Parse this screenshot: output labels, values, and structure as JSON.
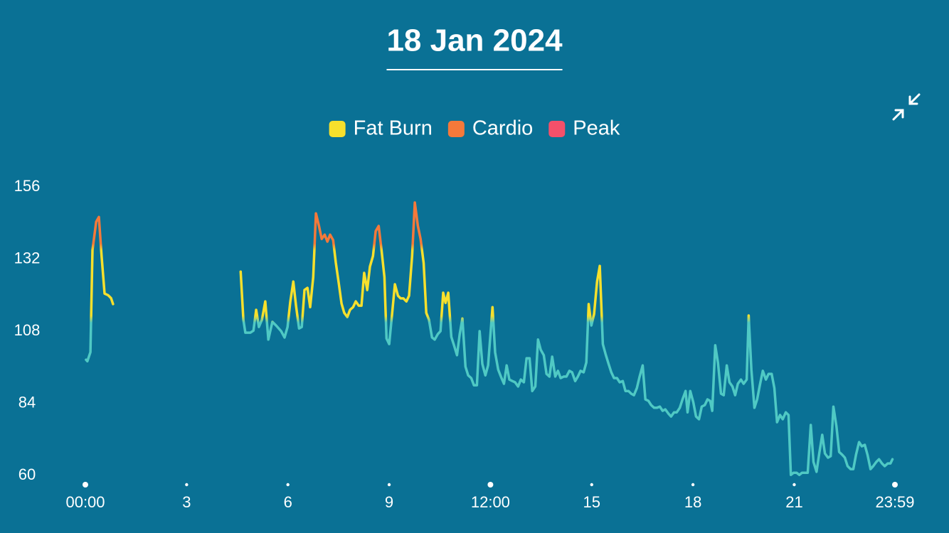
{
  "chart_data": {
    "type": "line",
    "title": "18 Jan 2024",
    "x": [
      0.02,
      0.06,
      0.15,
      0.21,
      0.23,
      0.32,
      0.4,
      0.48,
      0.57,
      0.67,
      0.76,
      0.82,
      null,
      4.6,
      4.68,
      4.74,
      4.89,
      4.98,
      5.06,
      5.14,
      5.23,
      5.33,
      5.42,
      5.54,
      5.65,
      5.8,
      5.9,
      5.99,
      6.07,
      6.16,
      6.24,
      6.33,
      6.41,
      6.49,
      6.58,
      6.66,
      6.75,
      6.83,
      6.92,
      7.0,
      7.09,
      7.17,
      7.25,
      7.34,
      7.42,
      7.51,
      7.59,
      7.67,
      7.76,
      7.84,
      7.93,
      8.01,
      8.1,
      8.18,
      8.26,
      8.35,
      8.43,
      8.52,
      8.6,
      8.69,
      8.77,
      8.86,
      8.92,
      9.0,
      9.09,
      9.17,
      9.26,
      9.34,
      9.42,
      9.51,
      9.59,
      9.68,
      9.76,
      9.85,
      9.93,
      10.02,
      10.1,
      10.18,
      10.27,
      10.35,
      10.44,
      10.52,
      10.6,
      10.67,
      10.75,
      10.84,
      10.92,
      11.01,
      11.09,
      11.17,
      11.26,
      11.34,
      11.43,
      11.51,
      11.6,
      11.68,
      11.76,
      11.85,
      11.93,
      12.06,
      12.14,
      12.23,
      12.31,
      12.4,
      12.48,
      12.56,
      12.65,
      12.73,
      12.82,
      12.9,
      12.99,
      13.07,
      13.16,
      13.24,
      13.33,
      13.41,
      13.49,
      13.58,
      13.66,
      13.75,
      13.83,
      13.92,
      14.0,
      14.08,
      14.17,
      14.25,
      14.34,
      14.42,
      14.51,
      14.59,
      14.67,
      14.76,
      14.84,
      14.91,
      14.99,
      15.07,
      15.16,
      15.24,
      15.33,
      15.41,
      15.5,
      15.58,
      15.66,
      15.75,
      15.83,
      15.92,
      16.0,
      16.09,
      16.17,
      16.25,
      16.34,
      16.42,
      16.51,
      16.59,
      16.68,
      16.76,
      16.85,
      16.93,
      17.02,
      17.1,
      17.18,
      17.27,
      17.35,
      17.44,
      17.52,
      17.61,
      17.69,
      17.78,
      17.84,
      17.92,
      18.01,
      18.09,
      18.18,
      18.26,
      18.35,
      18.43,
      18.51,
      18.57,
      18.66,
      18.74,
      18.83,
      18.91,
      19.0,
      19.08,
      19.17,
      19.25,
      19.33,
      19.42,
      19.5,
      19.59,
      19.65,
      19.73,
      19.82,
      19.9,
      19.99,
      20.07,
      20.16,
      20.24,
      20.33,
      20.41,
      20.49,
      20.58,
      20.66,
      20.75,
      20.83,
      20.9,
      20.98,
      21.07,
      21.15,
      21.23,
      21.32,
      21.4,
      21.49,
      21.57,
      21.66,
      21.74,
      21.83,
      21.91,
      22.0,
      22.08,
      22.16,
      22.25,
      22.33,
      22.42,
      22.5,
      22.58,
      22.67,
      22.75,
      22.83,
      22.92,
      23.0,
      23.09,
      23.17,
      23.26,
      23.34,
      23.43,
      23.51,
      23.6,
      23.68,
      23.77,
      23.85,
      23.91
    ],
    "values": [
      98.5,
      98,
      101,
      135,
      136.6,
      144.4,
      146,
      133,
      120.5,
      120,
      119,
      117,
      null,
      127.8,
      111.8,
      107.5,
      107.5,
      108.2,
      115.1,
      109.4,
      111.8,
      117.9,
      105.2,
      111.1,
      109.9,
      108,
      105.9,
      109.4,
      117.7,
      124.5,
      116.5,
      108.9,
      109.4,
      121.7,
      122.4,
      116,
      126,
      147.2,
      143,
      138.7,
      140.1,
      137.8,
      140.1,
      138.3,
      130.7,
      123.6,
      117.2,
      114.1,
      112.7,
      115.1,
      116,
      117.9,
      116.5,
      116.5,
      127.4,
      121.7,
      129.5,
      133,
      141.3,
      143,
      135.4,
      126,
      105.6,
      103.7,
      114.1,
      123.6,
      119.8,
      118.9,
      118.9,
      117.9,
      119.8,
      133,
      150.8,
      143,
      138.7,
      130.7,
      114.1,
      111.8,
      105.9,
      105.2,
      107,
      108,
      120.8,
      117.4,
      120.8,
      106.1,
      103.3,
      100,
      107,
      112.2,
      96.2,
      93.3,
      92.4,
      90,
      90,
      108,
      97.1,
      93.3,
      96.6,
      116,
      100.9,
      95.2,
      92.9,
      90.5,
      96.6,
      91.9,
      91.4,
      91,
      89.6,
      91.9,
      91,
      99,
      99,
      88.1,
      89.6,
      105.2,
      101.8,
      100,
      93.8,
      92.9,
      99.5,
      92.9,
      94.8,
      92.4,
      92.9,
      92.9,
      94.8,
      94.3,
      91.4,
      92.9,
      94.8,
      94.3,
      97.6,
      117,
      109.9,
      113.7,
      124.5,
      129.7,
      103.7,
      100.4,
      97.1,
      94.3,
      92.4,
      92.4,
      91,
      91.4,
      88.1,
      88.1,
      87.2,
      86.7,
      89.1,
      92.9,
      96.6,
      85.3,
      84.8,
      83.4,
      82.5,
      82.5,
      82.9,
      81.5,
      82,
      80.6,
      79.6,
      81,
      81,
      82.5,
      85.3,
      88.1,
      81,
      88.1,
      84.3,
      79.6,
      78.7,
      82.9,
      83.4,
      85.3,
      84.8,
      81.5,
      103.3,
      97.6,
      87.2,
      86.7,
      96.6,
      91,
      89.6,
      86.7,
      90.5,
      91.9,
      90.5,
      91.9,
      113.2,
      95.2,
      82.5,
      85.3,
      90.5,
      94.8,
      91.9,
      93.8,
      93.8,
      89.1,
      77.7,
      80.1,
      78.7,
      81,
      80.1,
      60.2,
      60.9,
      60.9,
      60.2,
      60.9,
      60.9,
      60.9,
      76.8,
      64.5,
      61.2,
      67.3,
      73.5,
      67.3,
      65.9,
      66.4,
      82.9,
      76.3,
      67.8,
      66.9,
      65.9,
      63.1,
      62.1,
      62.1,
      66.9,
      71.1,
      69.7,
      70.2,
      66.9,
      62.1,
      63.1,
      64.5,
      65.4,
      64,
      63.1,
      64,
      64,
      65.4
    ],
    "color": "#4fc9c4",
    "zones": [
      {
        "name": "Fat Burn",
        "color": "#f7e02c",
        "from": 112
      },
      {
        "name": "Cardio",
        "color": "#f5793a",
        "from": 136
      },
      {
        "name": "Peak",
        "color": "#f5506a",
        "from": 155
      }
    ],
    "xlim": [
      0,
      23.983
    ],
    "xticks": [
      {
        "value": 0,
        "label": "00:00"
      },
      3,
      6,
      9,
      {
        "value": 12,
        "label": "12:00"
      },
      15,
      18,
      21,
      {
        "value": 23.983,
        "label": "23:59"
      }
    ],
    "ylim": [
      60,
      156
    ],
    "yticks": [
      60,
      84,
      108,
      132,
      156
    ]
  }
}
